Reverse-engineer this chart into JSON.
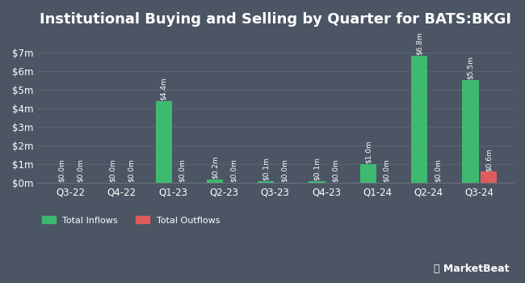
{
  "title": "Institutional Buying and Selling by Quarter for BATS:BKGI",
  "quarters": [
    "Q3-22",
    "Q4-22",
    "Q1-23",
    "Q2-23",
    "Q3-23",
    "Q4-23",
    "Q1-24",
    "Q2-24",
    "Q3-24"
  ],
  "inflows": [
    0.0,
    0.0,
    4.4,
    0.2,
    0.1,
    0.1,
    1.0,
    6.8,
    5.5
  ],
  "outflows": [
    0.0,
    0.0,
    0.0,
    0.0,
    0.0,
    0.0,
    0.0,
    0.0,
    0.6
  ],
  "inflow_labels": [
    "$0.0m",
    "$0.0m",
    "$4.4m",
    "$0.2m",
    "$0.1m",
    "$0.1m",
    "$1.0m",
    "$6.8m",
    "$5.5m"
  ],
  "outflow_labels": [
    "$0.0m",
    "$0.0m",
    "$0.0m",
    "$0.0m",
    "$0.0m",
    "$0.0m",
    "$0.0m",
    "$0.0m",
    "$0.6m"
  ],
  "inflow_color": "#3dba6f",
  "outflow_color": "#e05c5c",
  "bg_color": "#4b5563",
  "text_color": "#ffffff",
  "grid_color": "#5d6675",
  "axis_line_color": "#6b7280",
  "ylim": [
    0,
    7.7
  ],
  "yticks": [
    0,
    1,
    2,
    3,
    4,
    5,
    6,
    7
  ],
  "ytick_labels": [
    "$0m",
    "$1m",
    "$2m",
    "$3m",
    "$4m",
    "$5m",
    "$6m",
    "$7m"
  ],
  "bar_width": 0.32,
  "bar_gap": 0.04,
  "title_fontsize": 13,
  "tick_fontsize": 8.5,
  "label_fontsize": 6.5,
  "legend_fontsize": 8
}
